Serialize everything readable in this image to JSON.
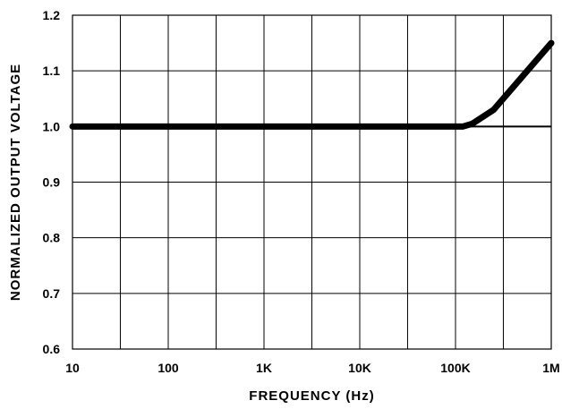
{
  "chart_data": {
    "type": "line",
    "title": "",
    "xlabel": "FREQUENCY (Hz)",
    "ylabel": "NORMALIZED OUTPUT VOLTAGE",
    "x_scale": "log",
    "xlim": [
      10,
      1000000
    ],
    "ylim": [
      0.6,
      1.2
    ],
    "grid": true,
    "x_ticks": [
      {
        "value": 10,
        "label": "10"
      },
      {
        "value": 100,
        "label": "100"
      },
      {
        "value": 1000,
        "label": "1K"
      },
      {
        "value": 10000,
        "label": "10K"
      },
      {
        "value": 100000,
        "label": "100K"
      },
      {
        "value": 1000000,
        "label": "1M"
      }
    ],
    "x_grid_values": [
      10,
      31.6,
      100,
      316,
      1000,
      3160,
      10000,
      31600,
      100000,
      316000,
      1000000
    ],
    "y_ticks": [
      {
        "value": 0.6,
        "label": "0.6"
      },
      {
        "value": 0.7,
        "label": "0.7"
      },
      {
        "value": 0.8,
        "label": "0.8"
      },
      {
        "value": 0.9,
        "label": "0.9"
      },
      {
        "value": 1.0,
        "label": "1.0"
      },
      {
        "value": 1.1,
        "label": "1.1"
      },
      {
        "value": 1.2,
        "label": "1.2"
      }
    ],
    "series": [
      {
        "x": [
          10,
          100,
          1000,
          10000,
          100000,
          120000,
          150000,
          250000,
          1000000
        ],
        "y": [
          1.0,
          1.0,
          1.0,
          1.0,
          1.0,
          1.0,
          1.005,
          1.03,
          1.15
        ]
      }
    ],
    "reference_lines": [
      {
        "y": 1.0,
        "from_x": 100000,
        "to_x": 1000000
      }
    ]
  }
}
